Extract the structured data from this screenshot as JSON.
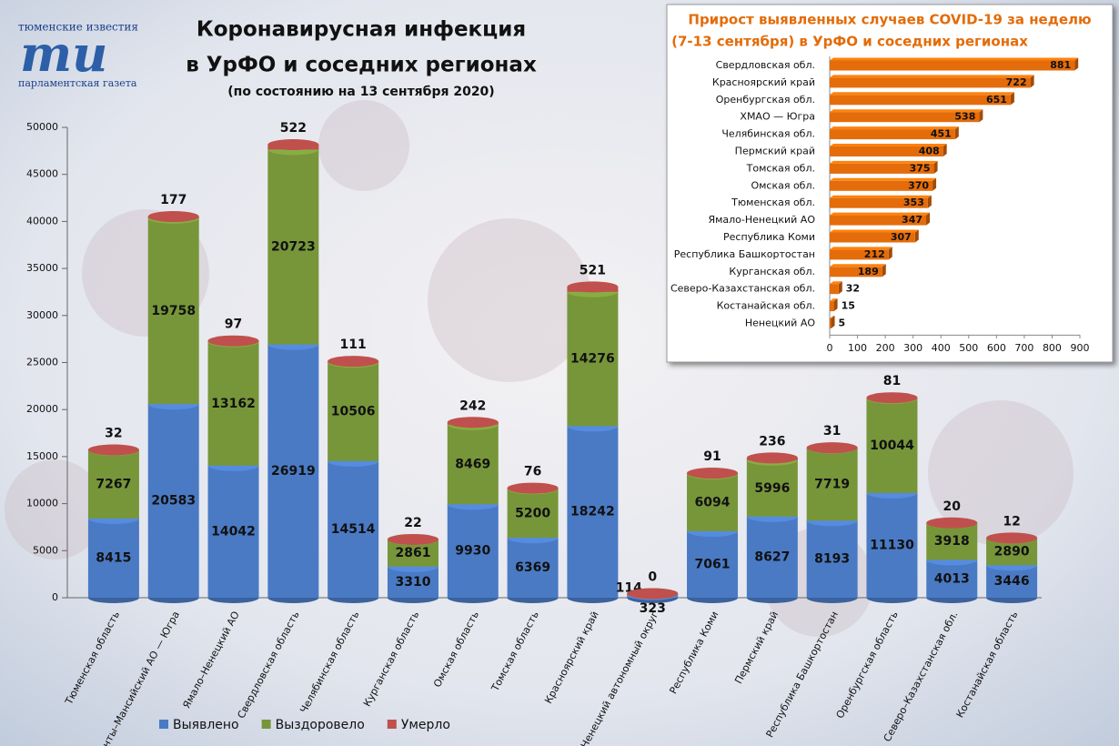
{
  "logo": {
    "top": "тюменские известия",
    "mark": "ти",
    "bottom": "парламентская газета"
  },
  "chart_data": [
    {
      "type": "bar",
      "stacked": true,
      "title": [
        "Коронавирусная инфекция",
        "в УрФО и соседних регионах"
      ],
      "subtitle": "(по состоянию на 13 сентября 2020)",
      "categories": [
        "Тюменская область",
        "Ханты–Мансийский АО — Югра",
        "Ямало–Ненецкий АО",
        "Свердловская область",
        "Челябинская область",
        "Курганская область",
        "Омская область",
        "Томская область",
        "Красноярский край",
        "Ненецкий автономный округ",
        "Республика Коми",
        "Пермский край",
        "Республика Башкортостан",
        "Оренбургская область",
        "Северо–Казахстанская обл.",
        "Костанайская область"
      ],
      "series": [
        {
          "name": "Выявлено",
          "color": "#4a7ac4",
          "values": [
            8415,
            20583,
            14042,
            26919,
            14514,
            3310,
            9930,
            6369,
            18242,
            323,
            7061,
            8627,
            8193,
            11130,
            4013,
            3446
          ]
        },
        {
          "name": "Выздоровело",
          "color": "#77963a",
          "values": [
            7267,
            19758,
            13162,
            20723,
            10506,
            2861,
            8469,
            5200,
            14276,
            114,
            6094,
            5996,
            7719,
            10044,
            3918,
            2890
          ]
        },
        {
          "name": "Умерло",
          "color": "#c0504d",
          "values": [
            32,
            177,
            97,
            522,
            111,
            22,
            242,
            76,
            521,
            0,
            91,
            236,
            31,
            81,
            20,
            12
          ]
        }
      ],
      "ylim": [
        0,
        50000
      ],
      "yticks": [
        0,
        5000,
        10000,
        15000,
        20000,
        25000,
        30000,
        35000,
        40000,
        45000,
        50000
      ]
    },
    {
      "type": "barh",
      "title": [
        "Прирост выявленных случаев COVID-19 за неделю",
        "(7-13 сентября) в УрФО и соседних регионах"
      ],
      "categories": [
        "Свердловская обл.",
        "Красноярский край",
        "Оренбургская обл.",
        "ХМАО — Югра",
        "Челябинская обл.",
        "Пермский край",
        "Томская обл.",
        "Омская обл.",
        "Тюменская обл.",
        "Ямало-Ненецкий АО",
        "Республика Коми",
        "Республика Башкортостан",
        "Курганская обл.",
        "Северо-Казахстанская обл.",
        "Костанайская обл.",
        "Ненецкий АО"
      ],
      "values": [
        881,
        722,
        651,
        538,
        451,
        408,
        375,
        370,
        353,
        347,
        307,
        212,
        189,
        32,
        15,
        5
      ],
      "color": "#e46c0a",
      "xlim": [
        0,
        900
      ],
      "xticks": [
        0,
        100,
        200,
        300,
        400,
        500,
        600,
        700,
        800,
        900
      ]
    }
  ]
}
